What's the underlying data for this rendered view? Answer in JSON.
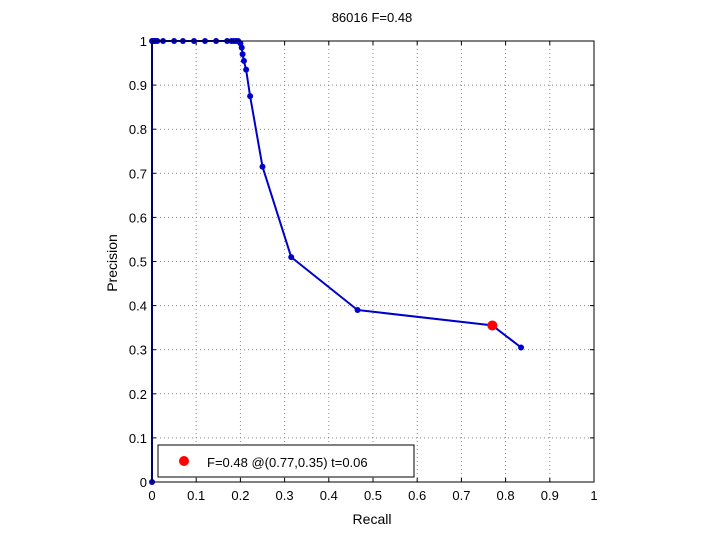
{
  "chart_data": {
    "type": "line",
    "title": "86016 F=0.48",
    "xlabel": "Recall",
    "ylabel": "Precision",
    "xlim": [
      0,
      1
    ],
    "ylim": [
      0,
      1
    ],
    "xticks": [
      0,
      0.1,
      0.2,
      0.3,
      0.4,
      0.5,
      0.6,
      0.7,
      0.8,
      0.9,
      1
    ],
    "xtick_labels": [
      "0",
      "0.1",
      "0.2",
      "0.3",
      "0.4",
      "0.5",
      "0.6",
      "0.7",
      "0.8",
      "0.9",
      "1"
    ],
    "yticks": [
      0,
      0.1,
      0.2,
      0.3,
      0.4,
      0.5,
      0.6,
      0.7,
      0.8,
      0.9,
      1
    ],
    "ytick_labels": [
      "0",
      "0.1",
      "0.2",
      "0.3",
      "0.4",
      "0.5",
      "0.6",
      "0.7",
      "0.8",
      "0.9",
      "1"
    ],
    "grid": true,
    "legend_position": "bottom-left",
    "colors": {
      "curve": "#0000cc",
      "marker": "#ff0000",
      "grid": "#888888",
      "axes": "#000000"
    },
    "series": [
      {
        "x": [
          0.0,
          0.0,
          0.002,
          0.004,
          0.006,
          0.008,
          0.012,
          0.025,
          0.05,
          0.07,
          0.095,
          0.12,
          0.145,
          0.17,
          0.18,
          0.185,
          0.19,
          0.195,
          0.2,
          0.203,
          0.205,
          0.208,
          0.213,
          0.222,
          0.25,
          0.315,
          0.465,
          0.77,
          0.835
        ],
        "y": [
          0.0,
          1.0,
          1.0,
          1.0,
          1.0,
          1.0,
          1.0,
          1.0,
          1.0,
          1.0,
          1.0,
          1.0,
          1.0,
          1.0,
          1.0,
          1.0,
          1.0,
          1.0,
          0.995,
          0.985,
          0.97,
          0.955,
          0.935,
          0.875,
          0.715,
          0.51,
          0.39,
          0.355,
          0.305
        ]
      }
    ],
    "highlight_point": {
      "x": 0.77,
      "y": 0.355,
      "legend_label": "F=0.48 @(0.77,0.35) t=0.06"
    }
  }
}
